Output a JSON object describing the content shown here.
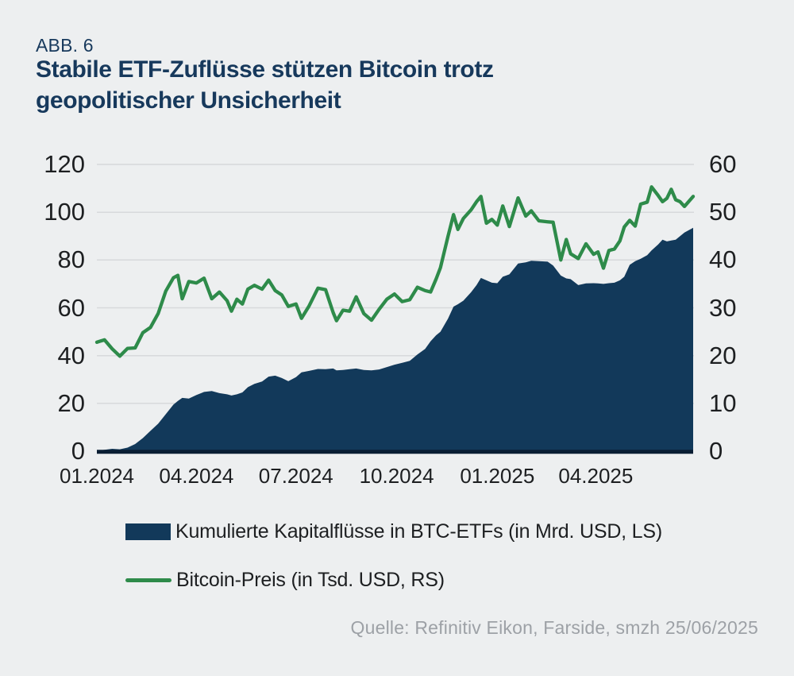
{
  "figure_label": "ABB. 6",
  "title_line1": "Stabile ETF-Zuflüsse stützen Bitcoin trotz",
  "title_line2": "geopolitischer Unsicherheit",
  "legend": {
    "flows_label": "Kumulierte Kapitalflüsse in BTC-ETFs (in Mrd. USD, LS)",
    "btc_label": "Bitcoin-Preis (in Tsd. USD, RS)"
  },
  "source": "Quelle: Refinitiv Eikon, Farside, smzh 25/06/2025",
  "colors": {
    "navy": "#12395A",
    "green": "#2E8B4A",
    "title": "#17395C",
    "grid": "#D7D9DB",
    "baseline": "#0A1E33",
    "bg": "#EDEFF0",
    "axis_text": "#1D1F21",
    "source_text": "#9DA1A6"
  },
  "chart_data": {
    "type": "combo-area-line",
    "title": "Stabile ETF-Zuflüsse stützen Bitcoin trotz geopolitischer Unsicherheit",
    "grid": true,
    "legend_position": "bottom-left",
    "x_tick_labels": [
      "01.2024",
      "04.2024",
      "07.2024",
      "10.2024",
      "01.2025",
      "04.2025"
    ],
    "x_tick_days": [
      0,
      91,
      182,
      274,
      366,
      456
    ],
    "x_days_max": 545,
    "left_axis": {
      "series": "Kumulierte Kapitalflüsse in BTC-ETFs (Mrd. USD)",
      "ticks": [
        0,
        20,
        40,
        60,
        80,
        100,
        120
      ],
      "range": [
        0,
        120
      ]
    },
    "right_axis": {
      "series": "Bitcoin-Preis (Tsd. USD)",
      "ticks": [
        0,
        10,
        20,
        30,
        40,
        50,
        60
      ],
      "range": [
        0,
        60
      ]
    },
    "days": [
      0,
      7,
      14,
      21,
      28,
      35,
      42,
      49,
      56,
      63,
      70,
      74,
      78,
      84,
      91,
      98,
      105,
      112,
      119,
      123,
      128,
      133,
      138,
      144,
      151,
      157,
      163,
      169,
      175,
      182,
      187,
      194,
      202,
      209,
      216,
      219,
      225,
      231,
      237,
      244,
      251,
      258,
      265,
      272,
      279,
      286,
      293,
      300,
      305,
      310,
      314,
      321,
      326,
      330,
      335,
      342,
      347,
      351,
      356,
      361,
      366,
      371,
      377,
      385,
      392,
      397,
      404,
      412,
      417,
      424,
      429,
      433,
      440,
      447,
      454,
      458,
      463,
      468,
      473,
      478,
      482,
      487,
      492,
      497,
      503,
      507,
      513,
      517,
      521,
      525,
      529,
      533,
      537,
      545
    ],
    "series": [
      {
        "name": "Kumulierte Kapitalflüsse in BTC-ETFs (in Mrd. USD, LS)",
        "type": "area",
        "axis": "left",
        "values": [
          0.2,
          0.6,
          1.0,
          0.8,
          1.5,
          3.0,
          5.5,
          8.5,
          11.5,
          15.5,
          19.5,
          21.0,
          22.3,
          22.0,
          23.5,
          24.8,
          25.2,
          24.3,
          23.8,
          23.3,
          23.8,
          24.6,
          26.8,
          28.2,
          29.2,
          31.2,
          31.6,
          30.6,
          29.3,
          31.0,
          33.0,
          33.6,
          34.4,
          34.3,
          34.6,
          33.8,
          34.0,
          34.3,
          34.6,
          34.0,
          33.8,
          34.2,
          35.2,
          36.2,
          37.0,
          37.8,
          40.5,
          42.8,
          46.0,
          48.5,
          50.0,
          55.5,
          60.5,
          61.5,
          63.0,
          66.5,
          69.5,
          72.5,
          71.5,
          70.5,
          70.3,
          73.0,
          74.0,
          78.5,
          79.0,
          79.7,
          79.5,
          79.3,
          77.7,
          73.5,
          72.3,
          72.0,
          69.5,
          70.2,
          70.3,
          70.2,
          70.0,
          70.3,
          70.5,
          71.5,
          73.0,
          78.0,
          79.5,
          80.5,
          82.0,
          84.0,
          86.5,
          88.5,
          87.8,
          88.2,
          88.5,
          90.0,
          91.5,
          93.5
        ]
      },
      {
        "name": "Bitcoin-Preis (in Tsd. USD, RS)",
        "type": "line",
        "axis": "right",
        "values": [
          22.8,
          23.3,
          21.4,
          19.9,
          21.5,
          21.6,
          24.8,
          25.9,
          28.8,
          33.5,
          36.3,
          36.8,
          31.9,
          35.5,
          35.2,
          36.2,
          31.9,
          33.3,
          31.5,
          29.3,
          31.8,
          30.8,
          33.9,
          34.7,
          33.9,
          35.8,
          33.6,
          32.7,
          30.3,
          30.8,
          27.8,
          30.4,
          34.1,
          33.8,
          29.0,
          27.3,
          29.5,
          29.3,
          32.3,
          28.8,
          27.4,
          29.7,
          31.8,
          32.9,
          31.3,
          31.7,
          34.3,
          33.6,
          33.3,
          36.0,
          38.4,
          45.0,
          49.5,
          46.4,
          48.7,
          50.5,
          52.2,
          53.3,
          47.7,
          48.5,
          47.3,
          51.3,
          47.0,
          53.0,
          49.2,
          50.3,
          48.2,
          48.0,
          47.9,
          40.0,
          44.3,
          41.3,
          40.3,
          43.4,
          41.2,
          41.7,
          38.3,
          42.0,
          42.3,
          44.0,
          46.9,
          48.3,
          47.1,
          51.7,
          52.1,
          55.3,
          53.5,
          52.2,
          52.9,
          54.8,
          52.6,
          52.2,
          51.2,
          53.3
        ]
      }
    ]
  }
}
